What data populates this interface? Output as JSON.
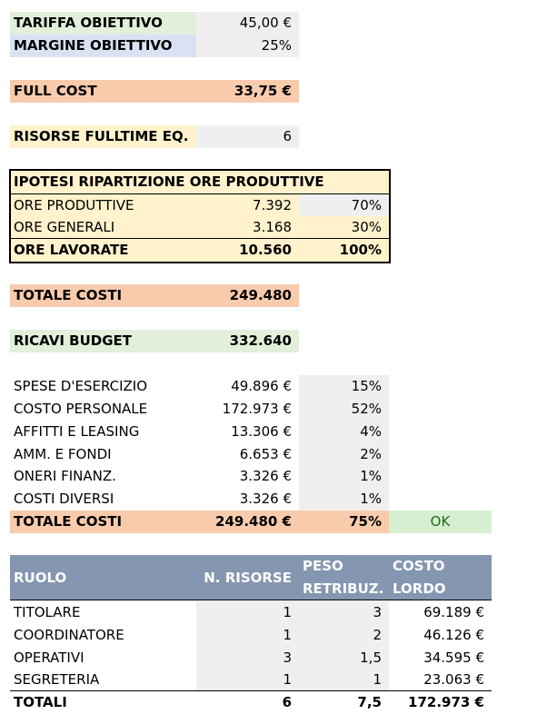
{
  "target": {
    "tariff_label": "TARIFFA OBIETTIVO",
    "tariff_value": "45,00 €",
    "margin_label": "MARGINE OBIETTIVO",
    "margin_value": "25%"
  },
  "full_cost": {
    "label": "FULL COST",
    "value": "33,75 €"
  },
  "resources": {
    "label": "RISORSE FULLTIME EQ.",
    "value": "6"
  },
  "hours": {
    "title": "IPOTESI RIPARTIZIONE ORE PRODUTTIVE",
    "rows": [
      {
        "label": "ORE PRODUTTIVE",
        "value": "7.392",
        "pct": "70%"
      },
      {
        "label": "ORE GENERALI",
        "value": "3.168",
        "pct": "30%"
      }
    ],
    "total": {
      "label": "ORE LAVORATE",
      "value": "10.560",
      "pct": "100%"
    }
  },
  "total_costs": {
    "label": "TOTALE COSTI",
    "value": "249.480"
  },
  "revenue": {
    "label": "RICAVI BUDGET",
    "value": "332.640"
  },
  "expenses": {
    "rows": [
      {
        "label": "SPESE D'ESERCIZIO",
        "value": "49.896 €",
        "pct": "15%"
      },
      {
        "label": "COSTO PERSONALE",
        "value": "172.973 €",
        "pct": "52%"
      },
      {
        "label": "AFFITTI E LEASING",
        "value": "13.306 €",
        "pct": "4%"
      },
      {
        "label": "AMM. E FONDI",
        "value": "6.653 €",
        "pct": "2%"
      },
      {
        "label": "ONERI FINANZ.",
        "value": "3.326 €",
        "pct": "1%"
      },
      {
        "label": "COSTI DIVERSI",
        "value": "3.326 €",
        "pct": "1%"
      }
    ],
    "total": {
      "label": "TOTALE COSTI",
      "value": "249.480 €",
      "pct": "75%",
      "status": "OK"
    }
  },
  "roles": {
    "headers": {
      "role": "RUOLO",
      "count": "N. RISORSE",
      "weight_1": "PESO",
      "weight_2": "RETRIBUZ.",
      "cost_1": "COSTO",
      "cost_2": "LORDO"
    },
    "rows": [
      {
        "role": "TITOLARE",
        "count": "1",
        "weight": "3",
        "cost": "69.189 €"
      },
      {
        "role": "COORDINATORE",
        "count": "1",
        "weight": "2",
        "cost": "46.126 €"
      },
      {
        "role": "OPERATIVI",
        "count": "3",
        "weight": "1,5",
        "cost": "34.595 €"
      },
      {
        "role": "SEGRETERIA",
        "count": "1",
        "weight": "1",
        "cost": "23.063 €"
      }
    ],
    "total": {
      "label": "TOTALI",
      "count": "6",
      "weight": "7,5",
      "cost": "172.973 €"
    }
  }
}
